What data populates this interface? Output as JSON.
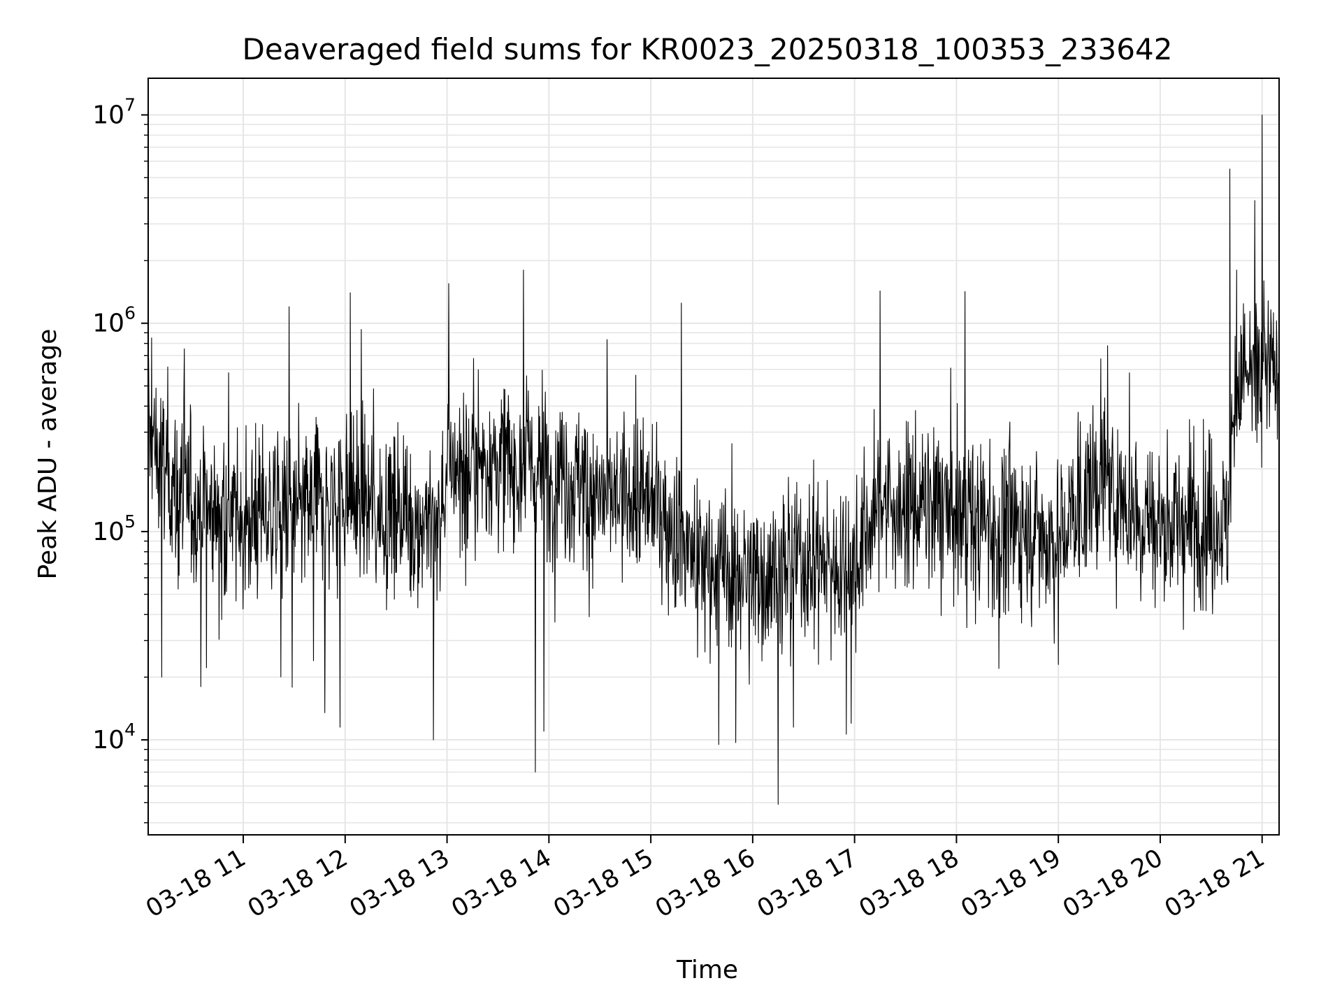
{
  "chart_data": {
    "type": "line",
    "title": "Deaveraged field sums for KR0023_20250318_100353_233642",
    "xlabel": "Time",
    "ylabel": "Peak ADU - average",
    "yscale": "log",
    "ylim": [
      3500,
      15000000
    ],
    "xlim": [
      "2025-03-18 10:04",
      "2025-03-18 21:10"
    ],
    "grid": true,
    "line_color": "#000000",
    "x_ticks": [
      "03-18 11",
      "03-18 12",
      "03-18 13",
      "03-18 14",
      "03-18 15",
      "03-18 16",
      "03-18 17",
      "03-18 18",
      "03-18 19",
      "03-18 20",
      "03-18 21"
    ],
    "y_ticks": [
      {
        "base": "10",
        "exp": "4",
        "value": 10000
      },
      {
        "base": "10",
        "exp": "5",
        "value": 100000
      },
      {
        "base": "10",
        "exp": "6",
        "value": 1000000
      },
      {
        "base": "10",
        "exp": "7",
        "value": 10000000
      }
    ],
    "series": [
      {
        "trend_points": [
          {
            "x": "2025-03-18 10:04",
            "y": 300000
          },
          {
            "x": "2025-03-18 10:20",
            "y": 150000
          },
          {
            "x": "2025-03-18 11:00",
            "y": 110000
          },
          {
            "x": "2025-03-18 11:30",
            "y": 120000
          },
          {
            "x": "2025-03-18 12:00",
            "y": 150000
          },
          {
            "x": "2025-03-18 12:30",
            "y": 120000
          },
          {
            "x": "2025-03-18 12:55",
            "y": 110000
          },
          {
            "x": "2025-03-18 13:00",
            "y": 200000
          },
          {
            "x": "2025-03-18 13:30",
            "y": 210000
          },
          {
            "x": "2025-03-18 14:00",
            "y": 200000
          },
          {
            "x": "2025-03-18 14:30",
            "y": 150000
          },
          {
            "x": "2025-03-18 15:00",
            "y": 140000
          },
          {
            "x": "2025-03-18 15:30",
            "y": 70000
          },
          {
            "x": "2025-03-18 16:00",
            "y": 60000
          },
          {
            "x": "2025-03-18 16:30",
            "y": 70000
          },
          {
            "x": "2025-03-18 17:00",
            "y": 70000
          },
          {
            "x": "2025-03-18 17:15",
            "y": 140000
          },
          {
            "x": "2025-03-18 17:45",
            "y": 130000
          },
          {
            "x": "2025-03-18 18:15",
            "y": 110000
          },
          {
            "x": "2025-03-18 18:45",
            "y": 100000
          },
          {
            "x": "2025-03-18 19:00",
            "y": 90000
          },
          {
            "x": "2025-03-18 19:25",
            "y": 180000
          },
          {
            "x": "2025-03-18 19:45",
            "y": 120000
          },
          {
            "x": "2025-03-18 20:00",
            "y": 110000
          },
          {
            "x": "2025-03-18 20:40",
            "y": 110000
          },
          {
            "x": "2025-03-18 20:45",
            "y": 550000
          },
          {
            "x": "2025-03-18 21:10",
            "y": 600000
          }
        ],
        "spikes": [
          {
            "x": "2025-03-18 10:06",
            "y": 850000
          },
          {
            "x": "2025-03-18 11:27",
            "y": 1200000
          },
          {
            "x": "2025-03-18 12:03",
            "y": 1400000
          },
          {
            "x": "2025-03-18 13:01",
            "y": 1550000
          },
          {
            "x": "2025-03-18 13:45",
            "y": 1800000
          },
          {
            "x": "2025-03-18 15:18",
            "y": 1250000
          },
          {
            "x": "2025-03-18 17:15",
            "y": 1430000
          },
          {
            "x": "2025-03-18 18:05",
            "y": 1420000
          },
          {
            "x": "2025-03-18 19:29",
            "y": 780000
          },
          {
            "x": "2025-03-18 20:41",
            "y": 5500000
          },
          {
            "x": "2025-03-18 20:45",
            "y": 1800000
          },
          {
            "x": "2025-03-18 21:00",
            "y": 10000000
          },
          {
            "x": "2025-03-18 21:10",
            "y": 2000000
          }
        ],
        "dips": [
          {
            "x": "2025-03-18 10:12",
            "y": 20000
          },
          {
            "x": "2025-03-18 10:35",
            "y": 18000
          },
          {
            "x": "2025-03-18 11:48",
            "y": 13500
          },
          {
            "x": "2025-03-18 11:57",
            "y": 11500
          },
          {
            "x": "2025-03-18 12:52",
            "y": 10000
          },
          {
            "x": "2025-03-18 13:52",
            "y": 7000
          },
          {
            "x": "2025-03-18 13:57",
            "y": 11000
          },
          {
            "x": "2025-03-18 15:40",
            "y": 9500
          },
          {
            "x": "2025-03-18 15:50",
            "y": 9700
          },
          {
            "x": "2025-03-18 16:15",
            "y": 4900
          },
          {
            "x": "2025-03-18 16:24",
            "y": 11500
          },
          {
            "x": "2025-03-18 16:58",
            "y": 12000
          },
          {
            "x": "2025-03-18 18:25",
            "y": 22000
          },
          {
            "x": "2025-03-18 19:00",
            "y": 23000
          }
        ]
      }
    ]
  }
}
